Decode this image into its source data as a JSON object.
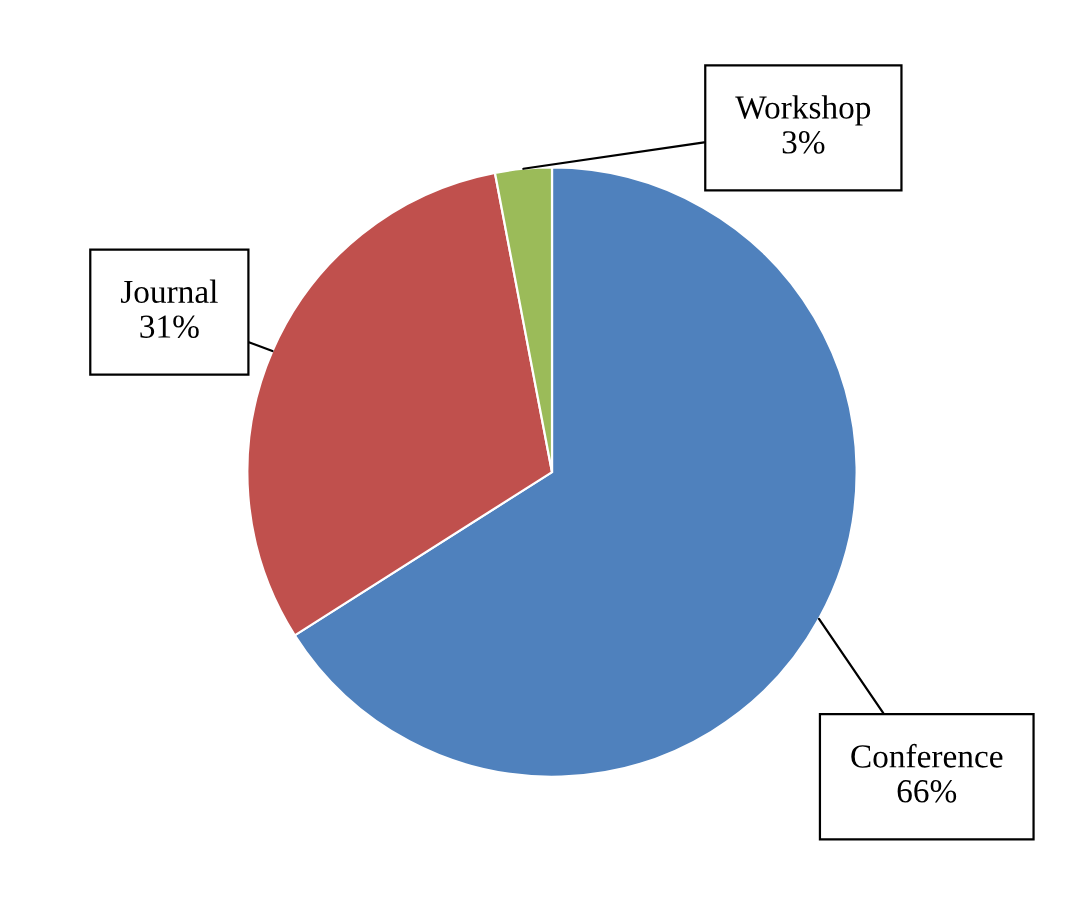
{
  "chart_data": {
    "type": "pie",
    "categories": [
      "Conference",
      "Journal",
      "Workshop"
    ],
    "values": [
      66,
      31,
      3
    ],
    "colors": [
      "#4f81bd",
      "#c0504d",
      "#9bbb59"
    ],
    "value_labels": [
      "66%",
      "31%",
      "3%"
    ],
    "legend": false
  }
}
